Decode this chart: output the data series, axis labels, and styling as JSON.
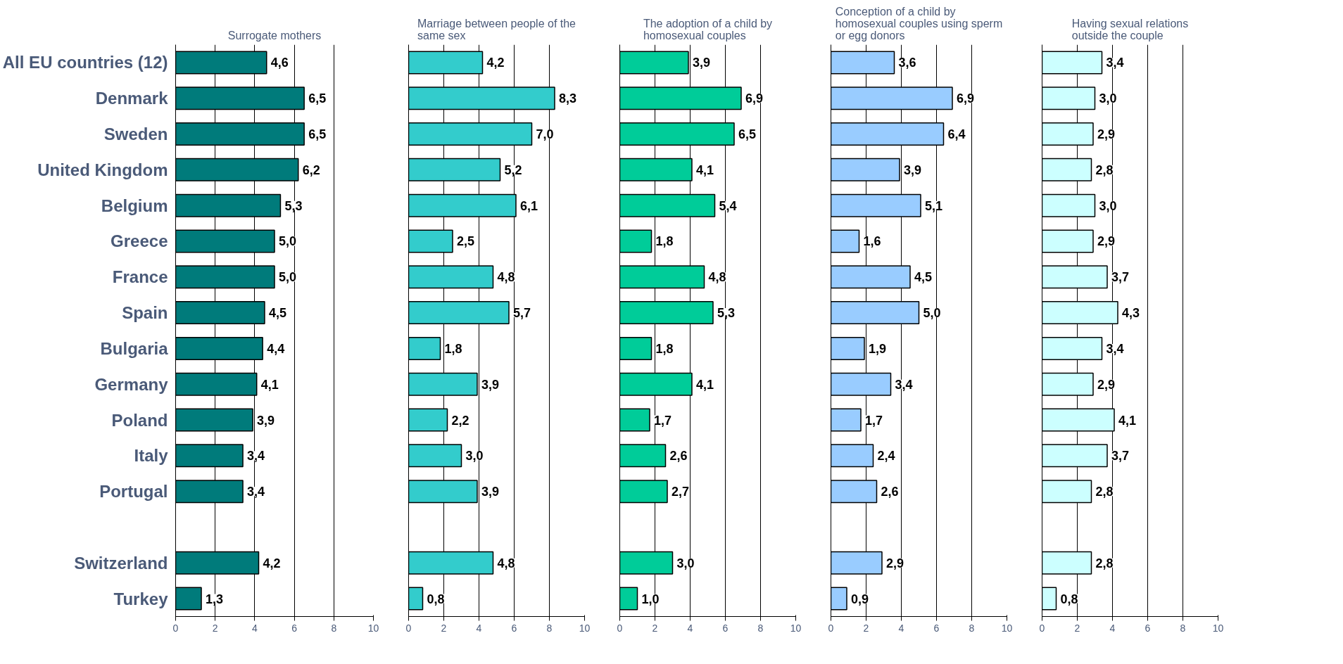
{
  "chart_data": [
    {
      "type": "bar",
      "orientation": "horizontal",
      "title": "Surrogate mothers",
      "categories": [
        "All EU countries (12)",
        "Denmark",
        "Sweden",
        "United Kingdom",
        "Belgium",
        "Greece",
        "France",
        "Spain",
        "Bulgaria",
        "Germany",
        "Poland",
        "Italy",
        "Portugal",
        null,
        "Switzerland",
        "Turkey"
      ],
      "series": [
        {
          "color": "#007b7b",
          "values": [
            4.6,
            6.5,
            6.5,
            6.2,
            5.3,
            5.0,
            5.0,
            4.5,
            4.4,
            4.1,
            3.9,
            3.4,
            3.4,
            null,
            4.2,
            1.3
          ],
          "value_labels": [
            "4,6",
            "6,5",
            "6,5",
            "6,2",
            "5,3",
            "5,0",
            "5,0",
            "4,5",
            "4,4",
            "4,1",
            "3,9",
            "3,4",
            "3,4",
            null,
            "4,2",
            "1,3"
          ]
        }
      ],
      "xlim": [
        0,
        10
      ],
      "xticks": [
        0,
        2,
        4,
        6,
        8,
        10
      ],
      "grid": "x"
    },
    {
      "type": "bar",
      "orientation": "horizontal",
      "title": "Marriage between people of the same sex",
      "categories": [
        "All EU countries (12)",
        "Denmark",
        "Sweden",
        "United Kingdom",
        "Belgium",
        "Greece",
        "France",
        "Spain",
        "Bulgaria",
        "Germany",
        "Poland",
        "Italy",
        "Portugal",
        null,
        "Switzerland",
        "Turkey"
      ],
      "series": [
        {
          "color": "#33cccc",
          "values": [
            4.2,
            8.3,
            7.0,
            5.2,
            6.1,
            2.5,
            4.8,
            5.7,
            1.8,
            3.9,
            2.2,
            3.0,
            3.9,
            null,
            4.8,
            0.8
          ],
          "value_labels": [
            "4,2",
            "8,3",
            "7,0",
            "5,2",
            "6,1",
            "2,5",
            "4,8",
            "5,7",
            "1,8",
            "3,9",
            "2,2",
            "3,0",
            "3,9",
            null,
            "4,8",
            "0,8"
          ]
        }
      ],
      "xlim": [
        0,
        10
      ],
      "xticks": [
        0,
        2,
        4,
        6,
        8,
        10
      ],
      "grid": "x",
      "tick_labels": "x"
    },
    {
      "type": "bar",
      "orientation": "horizontal",
      "title": "The adoption of a child by homosexual couples",
      "categories": [
        "All EU countries (12)",
        "Denmark",
        "Sweden",
        "United Kingdom",
        "Belgium",
        "Greece",
        "France",
        "Spain",
        "Bulgaria",
        "Germany",
        "Poland",
        "Italy",
        "Portugal",
        null,
        "Switzerland",
        "Turkey"
      ],
      "series": [
        {
          "color": "#00cc99",
          "values": [
            3.9,
            6.9,
            6.5,
            4.1,
            5.4,
            1.8,
            4.8,
            5.3,
            1.8,
            4.1,
            1.7,
            2.6,
            2.7,
            null,
            3.0,
            1.0
          ],
          "value_labels": [
            "3,9",
            "6,9",
            "6,5",
            "4,1",
            "5,4",
            "1,8",
            "4,8",
            "5,3",
            "1,8",
            "4,1",
            "1,7",
            "2,6",
            "2,7",
            null,
            "3,0",
            "1,0"
          ]
        }
      ],
      "xlim": [
        0,
        10
      ],
      "xticks": [
        0,
        2,
        4,
        6,
        8,
        10
      ],
      "grid": "x",
      "tick_labels": "x"
    },
    {
      "type": "bar",
      "orientation": "horizontal",
      "title": "Conception of a child by homosexual couples using sperm or egg donors",
      "categories": [
        "All EU countries (12)",
        "Denmark",
        "Sweden",
        "United Kingdom",
        "Belgium",
        "Greece",
        "France",
        "Spain",
        "Bulgaria",
        "Germany",
        "Poland",
        "Italy",
        "Portugal",
        null,
        "Switzerland",
        "Turkey"
      ],
      "series": [
        {
          "color": "#99ccff",
          "values": [
            3.6,
            6.9,
            6.4,
            3.9,
            5.1,
            1.6,
            4.5,
            5.0,
            1.9,
            3.4,
            1.7,
            2.4,
            2.6,
            null,
            2.9,
            0.9
          ],
          "value_labels": [
            "3,6",
            "6,9",
            "6,4",
            "3,9",
            "5,1",
            "1,6",
            "4,5",
            "5,0",
            "1,9",
            "3,4",
            "1,7",
            "2,4",
            "2,6",
            null,
            "2,9",
            "0,9"
          ]
        }
      ],
      "xlim": [
        0,
        10
      ],
      "xticks": [
        0,
        2,
        4,
        6,
        8,
        10
      ],
      "grid": "x",
      "tick_labels": "x"
    },
    {
      "type": "bar",
      "orientation": "horizontal",
      "title": "Having sexual relations outside the couple",
      "categories": [
        "All EU countries (12)",
        "Denmark",
        "Sweden",
        "United Kingdom",
        "Belgium",
        "Greece",
        "France",
        "Spain",
        "Bulgaria",
        "Germany",
        "Poland",
        "Italy",
        "Portugal",
        null,
        "Switzerland",
        "Turkey"
      ],
      "series": [
        {
          "color": "#ccffff",
          "values": [
            3.4,
            3.0,
            2.9,
            2.8,
            3.0,
            2.9,
            3.7,
            4.3,
            3.4,
            2.9,
            4.1,
            3.7,
            2.8,
            null,
            2.8,
            0.8
          ],
          "value_labels": [
            "3,4",
            "3,0",
            "2,9",
            "2,8",
            "3,0",
            "2,9",
            "3,7",
            "4,3",
            "3,4",
            "2,9",
            "4,1",
            "3,7",
            "2,8",
            null,
            "2,8",
            "0,8"
          ]
        }
      ],
      "xlim": [
        0,
        10
      ],
      "xticks": [
        0,
        2,
        4,
        6,
        8,
        10
      ],
      "grid": "x",
      "tick_labels": "x"
    }
  ]
}
